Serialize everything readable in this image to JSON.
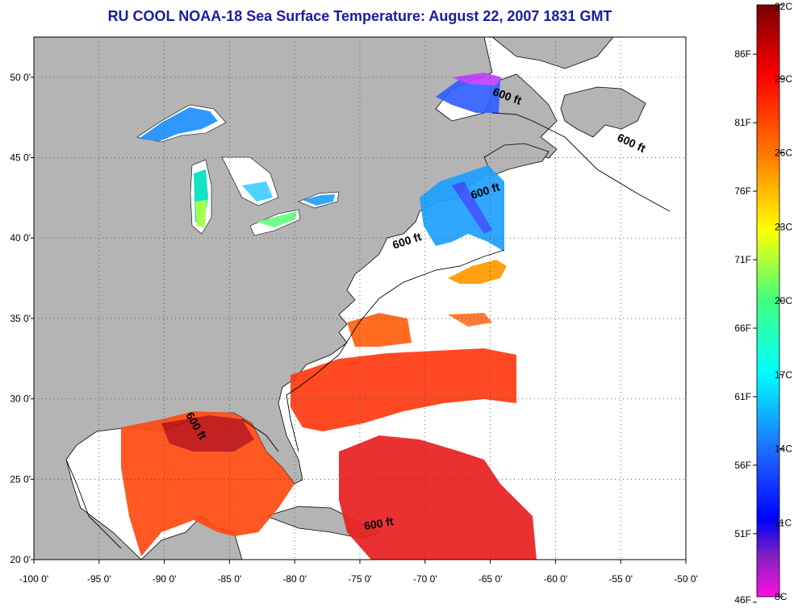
{
  "title": "RU COOL  NOAA-18  Sea Surface Temperature:  August 22, 2007 1831 GMT",
  "map": {
    "lon_range": [
      -100,
      -50
    ],
    "lat_range": [
      20,
      52.5
    ],
    "lon_ticks": [
      "-100 0'",
      "-95 0'",
      "-90 0'",
      "-85 0'",
      "-80 0'",
      "-75 0'",
      "-70 0'",
      "-65 0'",
      "-60 0'",
      "-55 0'",
      "-50 0'"
    ],
    "lat_ticks": [
      "50 0'",
      "45 0'",
      "40 0'",
      "35 0'",
      "30 0'",
      "25 0'",
      "20 0'"
    ],
    "land_color": "#b4b4b4",
    "ocean_color": "#ffffff",
    "grid": "dotted",
    "isobath_labels": [
      {
        "text": "600 ft",
        "lon": -63.8,
        "lat": 48.6,
        "angle": 20
      },
      {
        "text": "600 ft",
        "lon": -54.3,
        "lat": 45.7,
        "angle": 25
      },
      {
        "text": "600 ft",
        "lon": -65.3,
        "lat": 42.7,
        "angle": -18
      },
      {
        "text": "600 ft",
        "lon": -71.3,
        "lat": 39.6,
        "angle": -18
      },
      {
        "text": "600 ft",
        "lon": -87.8,
        "lat": 28.2,
        "angle": 60
      },
      {
        "text": "600 ft",
        "lon": -73.5,
        "lat": 22.0,
        "angle": -10
      }
    ]
  },
  "colorbar": {
    "celsius_labels": [
      "32C",
      "29C",
      "26C",
      "23C",
      "20C",
      "17C",
      "14C",
      "11C",
      "8C"
    ],
    "fahrenheit_labels": [
      "86F",
      "81F",
      "76F",
      "71F",
      "66F",
      "61F",
      "56F",
      "51F",
      "46F"
    ],
    "celsius_values": [
      32,
      29,
      26,
      23,
      20,
      17,
      14,
      11,
      8
    ],
    "fahrenheit_values": [
      86,
      81,
      76,
      71,
      66,
      61,
      56,
      51,
      46
    ],
    "range_c": [
      8,
      32
    ],
    "range_f": [
      46.4,
      89.6
    ],
    "gradient_colors": [
      "#8b0000",
      "#ff0000",
      "#ff8c00",
      "#ffff00",
      "#40ff80",
      "#00ffff",
      "#1e90ff",
      "#0000ff",
      "#8020c0",
      "#ff00ff"
    ]
  }
}
